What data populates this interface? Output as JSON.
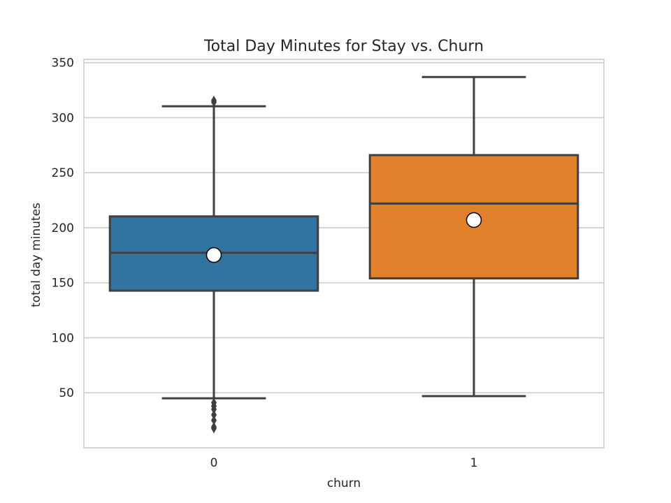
{
  "chart_data": {
    "type": "box",
    "title": "Total Day Minutes for Stay vs. Churn",
    "xlabel": "churn",
    "ylabel": "total day minutes",
    "categories": [
      "0",
      "1"
    ],
    "ylim": [
      0,
      353
    ],
    "yticks": [
      50,
      100,
      150,
      200,
      250,
      300,
      350
    ],
    "grid": true,
    "series": [
      {
        "category": "0",
        "color": "#3274a1",
        "whisker_low": 45,
        "q1": 142.8,
        "median": 177.2,
        "q3": 210.3,
        "whisker_high": 310.4,
        "mean": 175.2,
        "outliers": [
          315.6,
          314.1,
          41,
          38,
          35,
          30,
          25,
          19,
          17.6
        ]
      },
      {
        "category": "1",
        "color": "#e1812c",
        "whisker_low": 47,
        "q1": 154,
        "median": 222,
        "q3": 266,
        "whisker_high": 337,
        "mean": 207
      }
    ]
  }
}
